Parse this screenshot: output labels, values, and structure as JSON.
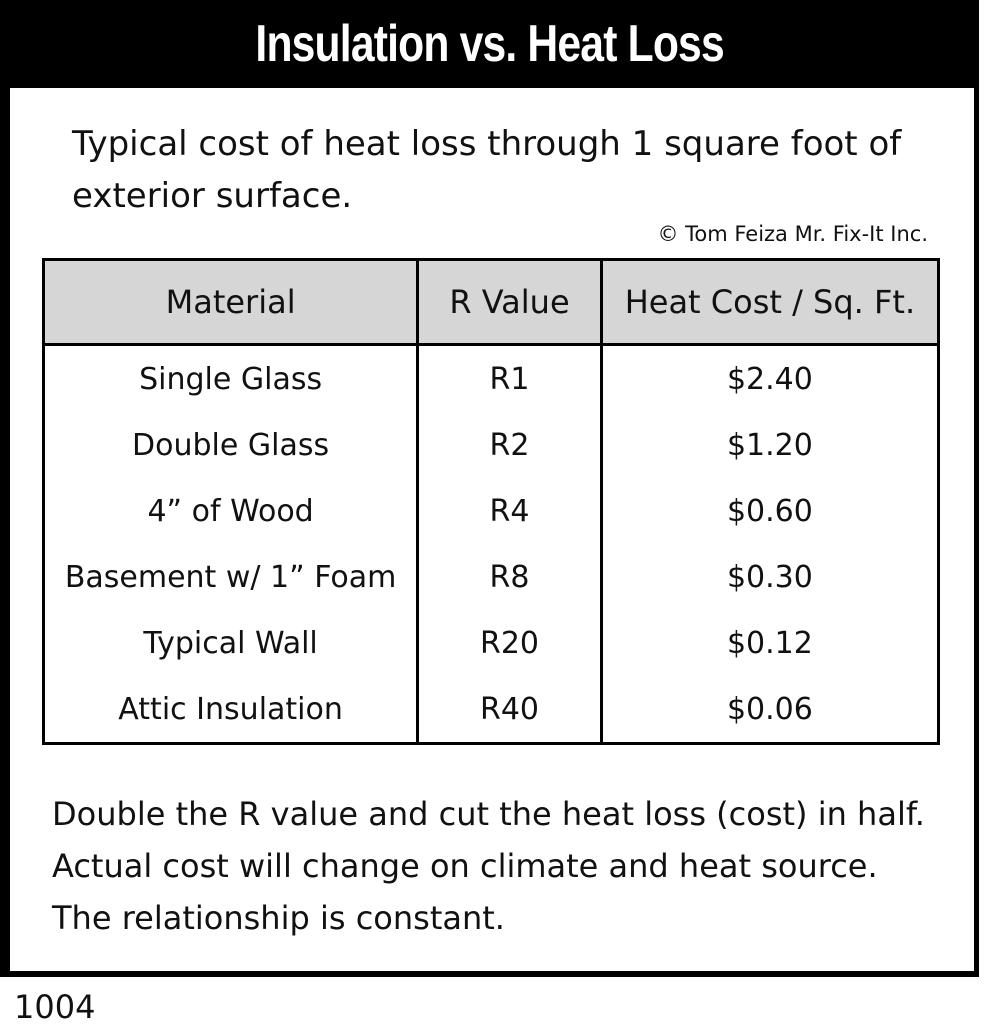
{
  "title": "Insulation vs. Heat Loss",
  "intro": "Typical cost of heat loss through 1 square foot of exterior surface.",
  "copyright": "© Tom Feiza Mr. Fix-It Inc.",
  "table": {
    "headers": [
      "Material",
      "R Value",
      "Heat Cost / Sq. Ft."
    ],
    "rows": [
      [
        "Single Glass",
        "R1",
        "$2.40"
      ],
      [
        "Double Glass",
        "R2",
        "$1.20"
      ],
      [
        "4” of Wood",
        "R4",
        "$0.60"
      ],
      [
        "Basement w/ 1” Foam",
        "R8",
        "$0.30"
      ],
      [
        "Typical Wall",
        "R20",
        "$0.12"
      ],
      [
        "Attic Insulation",
        "R40",
        "$0.06"
      ]
    ]
  },
  "footer": "Double the R value and cut the heat loss (cost) in half.  Actual cost will change on climate and heat source.  The relationship is constant.",
  "code": "1004"
}
